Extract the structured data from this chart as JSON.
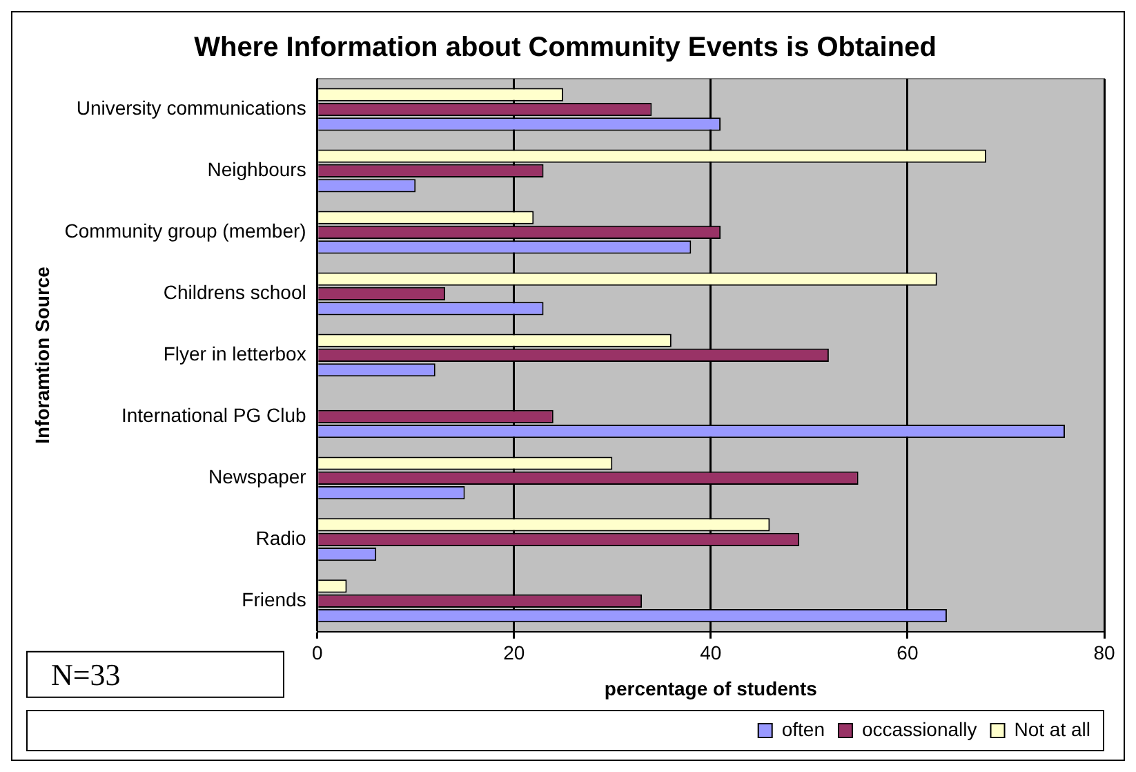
{
  "chart_data": {
    "type": "bar",
    "orientation": "horizontal",
    "title": "Where Information about Community Events is Obtained",
    "xlabel": "percentage of students",
    "ylabel": "Inforamtion Source",
    "categories": [
      "University communications",
      "Neighbours",
      "Community group (member)",
      "Childrens school",
      "Flyer in letterbox",
      "International PG Club",
      "Newspaper",
      "Radio",
      "Friends"
    ],
    "series": [
      {
        "name": "often",
        "color": "#9999ff",
        "values": [
          41,
          10,
          38,
          23,
          12,
          76,
          15,
          6,
          64
        ]
      },
      {
        "name": "occassionally",
        "color": "#993366",
        "values": [
          34,
          23,
          41,
          13,
          52,
          24,
          55,
          49,
          33
        ]
      },
      {
        "name": "Not at all",
        "color": "#ffffcc",
        "values": [
          25,
          68,
          22,
          63,
          36,
          0,
          30,
          46,
          3
        ]
      }
    ],
    "xlim": [
      0,
      80
    ],
    "xticks": [
      0,
      20,
      40,
      60,
      80
    ],
    "grid": "x",
    "legend": "bottom",
    "annotations": [
      "N=33"
    ]
  }
}
